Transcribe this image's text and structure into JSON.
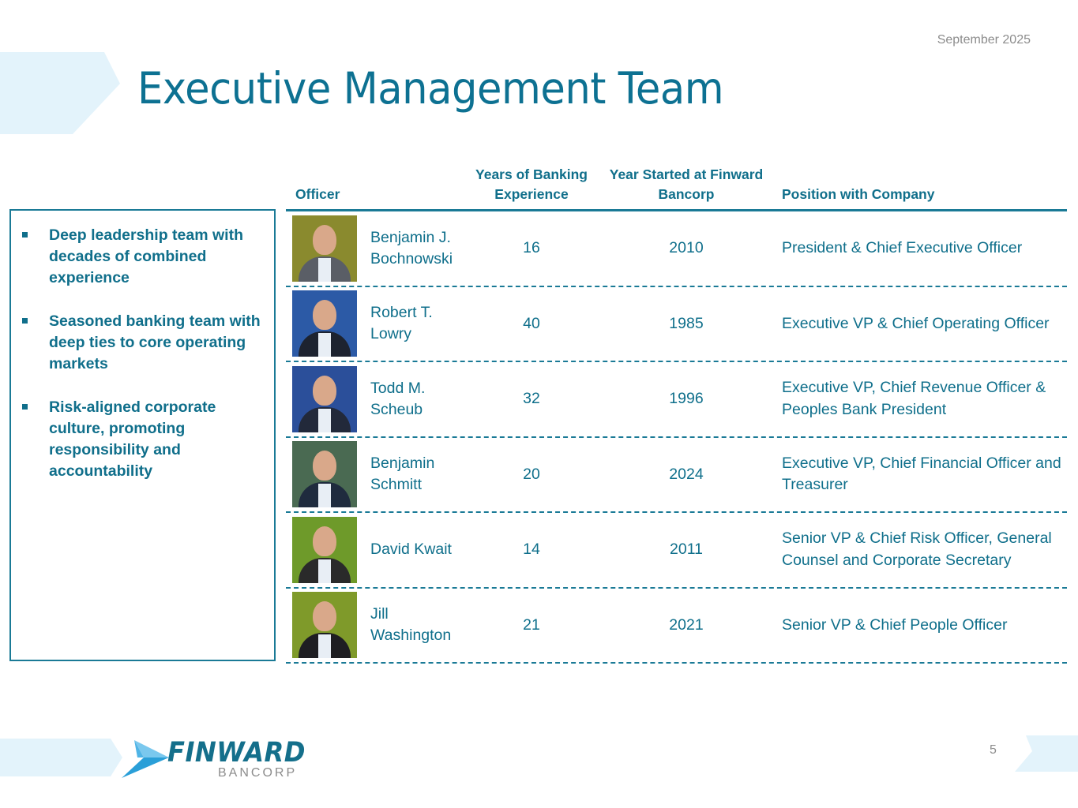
{
  "header": {
    "date": "September 2025",
    "title": "Executive Management Team"
  },
  "callout": {
    "bullets": [
      "Deep leadership team with decades of combined experience",
      "Seasoned banking team with deep ties to core operating markets",
      "Risk-aligned corporate culture, promoting responsibility and accountability"
    ]
  },
  "table": {
    "columns": [
      "Officer",
      "Years of Banking Experience",
      "Year Started at Finward Bancorp",
      "Position with Company"
    ],
    "rows": [
      {
        "name": "Benjamin J. Bochnowski",
        "years": "16",
        "started": "2010",
        "position": "President & Chief Executive Officer",
        "photo_bg": "#8a8a2e",
        "suit": "#5a5e66"
      },
      {
        "name": "Robert T. Lowry",
        "years": "40",
        "started": "1985",
        "position": "Executive VP & Chief Operating Officer",
        "photo_bg": "#2c5aa6",
        "suit": "#1d2330"
      },
      {
        "name": "Todd M. Scheub",
        "years": "32",
        "started": "1996",
        "position": "Executive VP, Chief Revenue Officer & Peoples Bank President",
        "photo_bg": "#2b4f9a",
        "suit": "#22293a"
      },
      {
        "name": "Benjamin Schmitt",
        "years": "20",
        "started": "2024",
        "position": "Executive VP, Chief Financial Officer and Treasurer",
        "photo_bg": "#4a6a52",
        "suit": "#1f2b3e"
      },
      {
        "name": "David Kwait",
        "years": "14",
        "started": "2011",
        "position": "Senior VP & Chief Risk Officer, General Counsel and Corporate Secretary",
        "photo_bg": "#6e9a2a",
        "suit": "#2a2a2a"
      },
      {
        "name": "Jill Washington",
        "years": "21",
        "started": "2021",
        "position": "Senior VP & Chief People Officer",
        "photo_bg": "#7f9a2a",
        "suit": "#1e1e22"
      }
    ]
  },
  "footer": {
    "logo_word": "FINWARD",
    "logo_sub": "BANCORP",
    "page_number": "5"
  },
  "colors": {
    "primary": "#0d7192",
    "accent_light": "#e3f3fb",
    "muted": "#8c8c8c"
  }
}
